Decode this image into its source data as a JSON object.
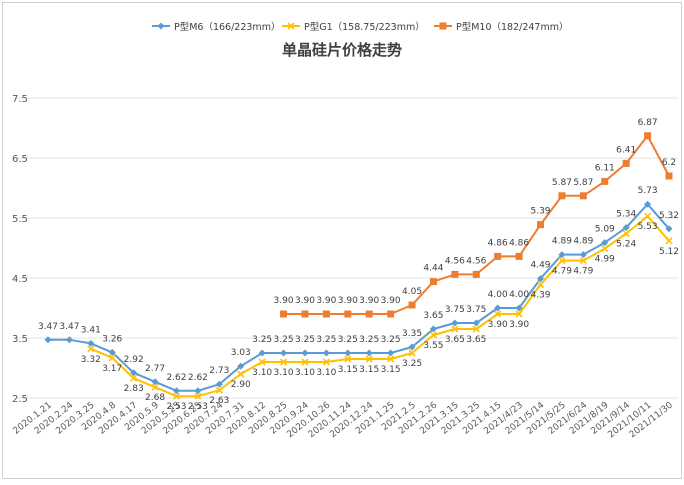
{
  "chart_data": {
    "type": "line",
    "title": "单晶硅片价格走势",
    "xlabel": "",
    "ylabel": "",
    "ylim": [
      2.5,
      7.5
    ],
    "yticks": [
      "7.5",
      "6.5",
      "5.5",
      "4.5",
      "3.5",
      "2.5"
    ],
    "grid": true,
    "legend_position": "top",
    "categories": [
      "2020.1.21",
      "2020.2.24",
      "2020.3.25",
      "2020.4.8",
      "2020.4.17",
      "2020.5.9",
      "2020.5.25",
      "2020.6.25",
      "2020.7.24",
      "2020.7.31",
      "2020.8.12",
      "2020.8.25",
      "2020.9.24",
      "2020.10.26",
      "2020.11.24",
      "2020.12.24",
      "2021.1.25",
      "2021.2.5",
      "2021.2.26",
      "2021.3.15",
      "2021.3.25",
      "2021.4.15",
      "2021/4/23",
      "2021/5/14",
      "2021/5/25",
      "2021/6/24",
      "2021/8/19",
      "2021/9/14",
      "2021/10/11",
      "2021/11/30"
    ],
    "series": [
      {
        "name": "P型M6（166/223mm）",
        "color": "#5b9bd5",
        "marker": "diamond",
        "values": [
          3.47,
          3.47,
          3.41,
          3.26,
          2.92,
          2.77,
          2.62,
          2.62,
          2.73,
          3.03,
          3.25,
          3.25,
          3.25,
          3.25,
          3.25,
          3.25,
          3.25,
          3.35,
          3.65,
          3.75,
          3.75,
          4.0,
          4.0,
          4.49,
          4.89,
          4.89,
          5.09,
          5.34,
          5.73,
          5.32
        ],
        "labels": [
          "3.47",
          "3.47",
          "3.41",
          "3.26",
          "2.92",
          "2.77",
          "2.62",
          "2.62",
          "2.73",
          "3.03",
          "3.25",
          "3.25",
          "3.25",
          "3.25",
          "3.25",
          "3.25",
          "3.25",
          "3.35",
          "3.65",
          "3.75",
          "3.75",
          "4.00",
          "4.00",
          "4.49",
          "4.89",
          "4.89",
          "5.09",
          "5.34",
          "5.73",
          "5.32"
        ]
      },
      {
        "name": "P型G1（158.75/223mm）",
        "color": "#ffc000",
        "marker": "x",
        "values": [
          null,
          null,
          3.32,
          3.17,
          2.83,
          2.68,
          2.53,
          2.53,
          2.63,
          2.9,
          3.1,
          3.1,
          3.1,
          3.1,
          3.15,
          3.15,
          3.15,
          3.25,
          3.55,
          3.65,
          3.65,
          3.9,
          3.9,
          4.39,
          4.79,
          4.79,
          4.99,
          5.24,
          5.53,
          5.12
        ],
        "labels": [
          "",
          "",
          "3.32",
          "3.17",
          "2.83",
          "2.68",
          "2.53",
          "2.53",
          "2.63",
          "2.90",
          "3.10",
          "3.10",
          "3.10",
          "3.10",
          "3.15",
          "3.15",
          "3.15",
          "3.25",
          "3.55",
          "3.65",
          "3.65",
          "3.90",
          "3.90",
          "4.39",
          "4.79",
          "4.79",
          "4.99",
          "5.24",
          "5.53",
          "5.12"
        ]
      },
      {
        "name": "P型M10（182/247mm）",
        "color": "#ed7d31",
        "marker": "square",
        "values": [
          null,
          null,
          null,
          null,
          null,
          null,
          null,
          null,
          null,
          null,
          null,
          3.9,
          3.9,
          3.9,
          3.9,
          3.9,
          3.9,
          4.05,
          4.44,
          4.56,
          4.56,
          4.86,
          4.86,
          5.39,
          5.87,
          5.87,
          6.11,
          6.41,
          6.87,
          6.2
        ],
        "labels": [
          "",
          "",
          "",
          "",
          "",
          "",
          "",
          "",
          "",
          "",
          "",
          "3.90",
          "3.90",
          "3.90",
          "3.90",
          "3.90",
          "3.90",
          "4.05",
          "4.44",
          "4.56",
          "4.56",
          "4.86",
          "4.86",
          "5.39",
          "5.87",
          "5.87",
          "6.11",
          "6.41",
          "6.87",
          "6.2"
        ]
      }
    ]
  }
}
